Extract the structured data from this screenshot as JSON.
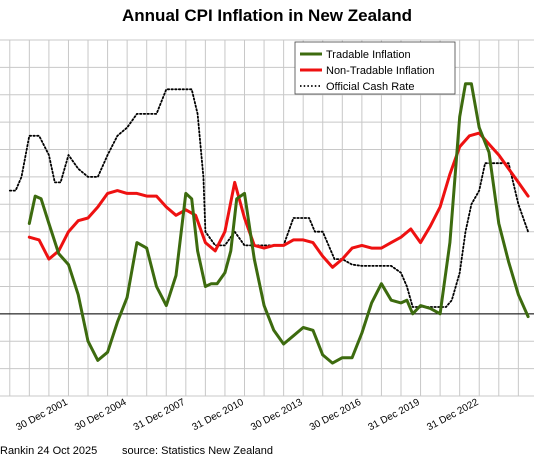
{
  "chart_data": {
    "type": "line",
    "title": "Annual CPI Inflation in New Zealand",
    "x_tick_labels": [
      "30 Dec 2001",
      "30 Dec 2004",
      "31 Dec 2007",
      "31 Dec 2010",
      "30 Dec 2013",
      "30 Dec 2016",
      "31 Dec 2019",
      "31 Dec 2022"
    ],
    "x_tick_years": [
      2001,
      2004,
      2007,
      2010,
      2013,
      2016,
      2019,
      2022
    ],
    "xlim": [
      1998.5,
      2025.8
    ],
    "ylim": [
      -3,
      10
    ],
    "y_zero_line": 0,
    "grid": true,
    "legend_position": "top-right",
    "series": [
      {
        "name": "Tradable Inflation",
        "color": "#3d6b0f",
        "x": [
          2000.0,
          2000.3,
          2000.6,
          2001.0,
          2001.5,
          2002.0,
          2002.5,
          2003.0,
          2003.5,
          2004.0,
          2004.5,
          2005.0,
          2005.5,
          2006.0,
          2006.5,
          2007.0,
          2007.5,
          2008.0,
          2008.3,
          2008.6,
          2009.0,
          2009.3,
          2009.6,
          2010.0,
          2010.3,
          2010.6,
          2011.0,
          2011.5,
          2012.0,
          2012.5,
          2013.0,
          2013.5,
          2014.0,
          2014.5,
          2015.0,
          2015.5,
          2016.0,
          2016.5,
          2017.0,
          2017.5,
          2018.0,
          2018.5,
          2019.0,
          2019.3,
          2019.6,
          2020.0,
          2020.5,
          2021.0,
          2021.5,
          2022.0,
          2022.3,
          2022.6,
          2023.0,
          2023.5,
          2024.0,
          2024.5,
          2025.0,
          2025.5
        ],
        "values": [
          3.3,
          4.3,
          4.2,
          3.3,
          2.2,
          1.8,
          0.7,
          -1.0,
          -1.7,
          -1.4,
          -0.3,
          0.6,
          2.6,
          2.4,
          1.0,
          0.3,
          1.4,
          4.4,
          4.2,
          2.3,
          1.0,
          1.1,
          1.1,
          1.5,
          2.3,
          4.2,
          4.4,
          2.0,
          0.3,
          -0.6,
          -1.1,
          -0.8,
          -0.5,
          -0.6,
          -1.5,
          -1.8,
          -1.6,
          -1.6,
          -0.7,
          0.4,
          1.1,
          0.5,
          0.4,
          0.5,
          0.0,
          0.3,
          0.2,
          0.0,
          2.6,
          7.2,
          8.4,
          8.4,
          6.8,
          5.9,
          3.3,
          1.9,
          0.7,
          -0.1
        ]
      },
      {
        "name": "Non-Tradable Inflation",
        "color": "#ee1111",
        "x": [
          2000.0,
          2000.5,
          2001.0,
          2001.5,
          2002.0,
          2002.5,
          2003.0,
          2003.5,
          2004.0,
          2004.5,
          2005.0,
          2005.5,
          2006.0,
          2006.5,
          2007.0,
          2007.5,
          2008.0,
          2008.5,
          2009.0,
          2009.5,
          2010.0,
          2010.5,
          2011.0,
          2011.5,
          2012.0,
          2012.5,
          2013.0,
          2013.5,
          2014.0,
          2014.5,
          2015.0,
          2015.5,
          2016.0,
          2016.5,
          2017.0,
          2017.5,
          2018.0,
          2018.5,
          2019.0,
          2019.5,
          2020.0,
          2020.5,
          2021.0,
          2021.5,
          2022.0,
          2022.5,
          2023.0,
          2023.5,
          2024.0,
          2024.5,
          2025.0,
          2025.5
        ],
        "values": [
          2.8,
          2.7,
          2.0,
          2.3,
          3.0,
          3.4,
          3.5,
          3.9,
          4.4,
          4.5,
          4.4,
          4.4,
          4.3,
          4.3,
          3.9,
          3.6,
          3.8,
          3.6,
          2.6,
          2.3,
          3.0,
          4.8,
          3.5,
          2.5,
          2.4,
          2.5,
          2.5,
          2.7,
          2.7,
          2.6,
          2.1,
          1.7,
          2.0,
          2.4,
          2.5,
          2.4,
          2.4,
          2.6,
          2.8,
          3.1,
          2.6,
          3.2,
          3.9,
          5.1,
          6.1,
          6.5,
          6.6,
          6.2,
          5.8,
          5.3,
          4.8,
          4.3
        ]
      },
      {
        "name": "Official Cash Rate",
        "color": "#000000",
        "x": [
          1999.0,
          1999.3,
          1999.6,
          2000.0,
          2000.5,
          2001.0,
          2001.3,
          2001.6,
          2002.0,
          2002.5,
          2003.0,
          2003.5,
          2004.0,
          2004.5,
          2005.0,
          2005.5,
          2006.0,
          2006.5,
          2007.0,
          2007.3,
          2007.6,
          2008.0,
          2008.3,
          2008.6,
          2008.9,
          2009.0,
          2009.5,
          2010.0,
          2010.5,
          2011.0,
          2011.3,
          2011.6,
          2012.0,
          2012.5,
          2013.0,
          2013.5,
          2014.0,
          2014.3,
          2014.6,
          2015.0,
          2015.3,
          2015.6,
          2016.0,
          2016.5,
          2017.0,
          2017.5,
          2018.0,
          2018.5,
          2019.0,
          2019.3,
          2019.6,
          2020.0,
          2020.2,
          2020.5,
          2021.0,
          2021.3,
          2021.6,
          2022.0,
          2022.3,
          2022.6,
          2023.0,
          2023.3,
          2023.6,
          2024.0,
          2024.5,
          2025.0,
          2025.5
        ],
        "values": [
          4.5,
          4.5,
          5.0,
          6.5,
          6.5,
          5.8,
          4.8,
          4.8,
          5.8,
          5.3,
          5.0,
          5.0,
          5.8,
          6.5,
          6.8,
          7.3,
          7.3,
          7.3,
          8.2,
          8.2,
          8.2,
          8.2,
          8.2,
          7.3,
          5.0,
          3.0,
          2.5,
          2.5,
          3.0,
          2.5,
          2.5,
          2.5,
          2.5,
          2.5,
          2.5,
          3.5,
          3.5,
          3.5,
          3.0,
          3.0,
          2.5,
          2.0,
          2.0,
          1.8,
          1.75,
          1.75,
          1.75,
          1.75,
          1.5,
          1.0,
          0.25,
          0.25,
          0.25,
          0.25,
          0.25,
          0.25,
          0.5,
          1.5,
          3.0,
          4.0,
          4.5,
          5.5,
          5.5,
          5.5,
          5.5,
          4.0,
          3.0
        ]
      }
    ]
  },
  "footer": {
    "author": "Rankin 24 Oct 2025",
    "source": "source: Statistics New Zealand"
  }
}
